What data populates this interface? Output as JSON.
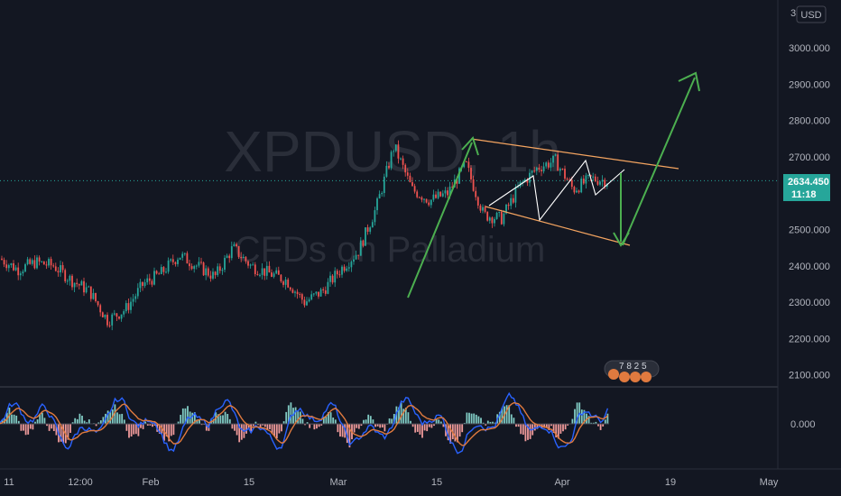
{
  "symbol_watermark": "XPDUSD, 1h",
  "description_watermark": "CFDs on Palladium",
  "currency_badge": "USD",
  "price_tag": {
    "price": "2634.450",
    "countdown": "11:18"
  },
  "price_axis": {
    "labels": [
      "3000.000",
      "2900.000",
      "2800.000",
      "2700.000",
      "2500.000",
      "2400.000",
      "2300.000",
      "2200.000",
      "2100.000"
    ],
    "top_partial": "31"
  },
  "oscillator_axis": {
    "labels": [
      "0.000"
    ]
  },
  "time_axis": {
    "labels": [
      "11",
      "12:00",
      "Feb",
      "15",
      "Mar",
      "15",
      "Apr",
      "19",
      "May"
    ]
  },
  "event_badge": "7  8  2  5",
  "colors": {
    "background": "#131722",
    "up": "#26a69a",
    "down": "#ef5350",
    "drawing_orange": "#f4a460",
    "arrow_green": "#4caf50",
    "osc_fast": "#2962ff",
    "osc_slow": "#e07a3f"
  },
  "chart_data": {
    "type": "line",
    "ylim": [
      2060,
      3110
    ],
    "last_price": 2634.45,
    "series": [
      {
        "x": [
          "Jan 11",
          "Jan 14",
          "Jan 18",
          "Jan 22",
          "Jan 26",
          "Jan 29",
          "Feb 1",
          "Feb 4",
          "Feb 8",
          "Feb 12",
          "Feb 16",
          "Feb 20",
          "Feb 24",
          "Feb 27",
          "Mar 1",
          "Mar 5",
          "Mar 8",
          "Mar 10",
          "Mar 12",
          "Mar 14",
          "Mar 15",
          "Mar 16",
          "Mar 17",
          "Mar 19",
          "Mar 21",
          "Mar 23",
          "Mar 26",
          "Mar 28",
          "Mar 30",
          "Apr 1",
          "Apr 3",
          "Apr 5",
          "Apr 6",
          "Apr 7",
          "Apr 8"
        ],
        "values": [
          2420,
          2390,
          2410,
          2400,
          2360,
          2330,
          2250,
          2280,
          2350,
          2380,
          2430,
          2400,
          2370,
          2450,
          2400,
          2380,
          2360,
          2300,
          2330,
          2390,
          2440,
          2560,
          2730,
          2610,
          2580,
          2600,
          2680,
          2540,
          2530,
          2620,
          2670,
          2690,
          2610,
          2640,
          2634
        ]
      }
    ]
  }
}
